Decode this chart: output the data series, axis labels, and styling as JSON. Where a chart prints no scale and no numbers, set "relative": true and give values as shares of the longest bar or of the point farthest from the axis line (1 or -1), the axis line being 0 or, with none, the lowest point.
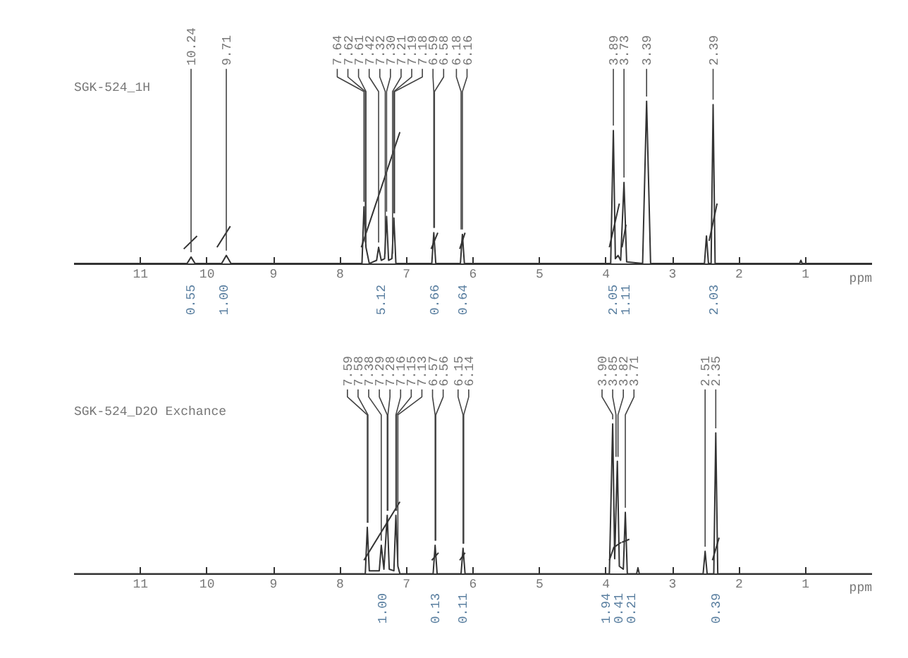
{
  "chart_data": [
    {
      "type": "line",
      "title": "SGK-524_1H",
      "xlabel": "ppm",
      "relative": true,
      "xlim": [
        12,
        0
      ],
      "xticks": [
        11,
        10,
        9,
        8,
        7,
        6,
        5,
        4,
        3,
        2,
        1
      ],
      "grid": false,
      "series": [
        {
          "color": "#333333",
          "x": [
            12.0,
            10.3,
            10.24,
            10.18,
            9.78,
            9.71,
            9.64,
            7.67,
            7.64,
            7.61,
            7.56,
            7.45,
            7.42,
            7.38,
            7.33,
            7.3,
            7.27,
            7.22,
            7.19,
            7.16,
            6.62,
            6.59,
            6.56,
            6.19,
            6.16,
            6.13,
            3.93,
            3.89,
            3.86,
            3.82,
            3.78,
            3.73,
            3.69,
            3.45,
            3.39,
            3.33,
            2.52,
            2.49,
            2.46,
            2.42,
            2.39,
            2.36,
            1.09,
            1.07,
            1.05,
            0
          ],
          "values": [
            0,
            0,
            0.04,
            0,
            0,
            0.05,
            0,
            0,
            0.35,
            0.1,
            0,
            0.02,
            0.1,
            0.02,
            0.03,
            0.29,
            0.02,
            0.03,
            0.28,
            0,
            0,
            0.19,
            0,
            0,
            0.18,
            0,
            0,
            0.82,
            0.03,
            0.05,
            0.02,
            0.5,
            0.01,
            0,
            1.0,
            0,
            0,
            0.17,
            0,
            0,
            0.98,
            0,
            0,
            0.02,
            0,
            0
          ]
        },
        {
          "color": "#333333",
          "x": [
            10.35,
            10.15,
            10.1,
            9.85,
            9.65,
            9.6,
            7.68,
            7.1,
            7.0,
            6.63,
            6.53,
            6.5,
            6.2,
            6.12,
            6.0,
            3.95,
            3.8,
            3.78,
            3.76,
            3.7,
            3.6,
            2.45,
            2.33
          ],
          "values": [
            0.09,
            0.17,
            null,
            0.1,
            0.23,
            null,
            0.1,
            0.81,
            null,
            0.09,
            0.19,
            null,
            0.09,
            0.19,
            null,
            0.1,
            0.37,
            null,
            0.1,
            0.24,
            null,
            0.14,
            0.37
          ]
        }
      ],
      "annotations": [
        {
          "text": "10.24",
          "x": 10.24,
          "y": 0.04
        },
        {
          "text": "9.71",
          "x": 9.71,
          "y": 0.05
        },
        {
          "text": "7.64",
          "x": 7.64,
          "y": 0.35
        },
        {
          "text": "7.62",
          "x": 7.62,
          "y": 0.1
        },
        {
          "text": "7.61",
          "x": 7.61,
          "y": 0.1
        },
        {
          "text": "7.42",
          "x": 7.42,
          "y": 0.1
        },
        {
          "text": "7.32",
          "x": 7.32,
          "y": 0.03
        },
        {
          "text": "7.30",
          "x": 7.3,
          "y": 0.29
        },
        {
          "text": "7.21",
          "x": 7.21,
          "y": 0.03
        },
        {
          "text": "7.19",
          "x": 7.19,
          "y": 0.28
        },
        {
          "text": "7.18",
          "x": 7.18,
          "y": 0.28
        },
        {
          "text": "6.59",
          "x": 6.59,
          "y": 0.19
        },
        {
          "text": "6.58",
          "x": 6.58,
          "y": 0.19
        },
        {
          "text": "6.18",
          "x": 6.18,
          "y": 0.18
        },
        {
          "text": "6.16",
          "x": 6.16,
          "y": 0.18
        },
        {
          "text": "3.89",
          "x": 3.89,
          "y": 0.82
        },
        {
          "text": "3.73",
          "x": 3.73,
          "y": 0.5
        },
        {
          "text": "3.39",
          "x": 3.39,
          "y": 1.0
        },
        {
          "text": "2.39",
          "x": 2.39,
          "y": 0.98
        },
        "0.55",
        "1.00",
        "5.12",
        "0.66",
        "0.64",
        "2.05",
        "1.11",
        "2.03"
      ]
    },
    {
      "type": "line",
      "title": "SGK-524_D2O Exchance",
      "xlabel": "ppm",
      "relative": true,
      "xlim": [
        12,
        0
      ],
      "xticks": [
        11,
        10,
        9,
        8,
        7,
        6,
        5,
        4,
        3,
        2,
        1
      ],
      "grid": false,
      "series": [
        {
          "color": "#333333",
          "x": [
            12.0,
            7.62,
            7.59,
            7.56,
            7.41,
            7.38,
            7.34,
            7.29,
            7.26,
            7.19,
            7.16,
            7.13,
            7.1,
            6.6,
            6.57,
            6.54,
            6.18,
            6.15,
            6.12,
            3.95,
            3.9,
            3.87,
            3.83,
            3.8,
            3.74,
            3.71,
            3.68,
            3.54,
            3.52,
            3.5,
            2.54,
            2.51,
            2.48,
            2.38,
            2.35,
            2.32,
            0
          ],
          "values": [
            0,
            0,
            0.31,
            0.02,
            0.02,
            0.19,
            0.03,
            0.39,
            0.03,
            0.02,
            0.39,
            0.05,
            0,
            0,
            0.19,
            0,
            0,
            0.17,
            0,
            0,
            1.0,
            0.1,
            0.75,
            0.05,
            0.03,
            0.41,
            0,
            0,
            0.04,
            0,
            0,
            0.15,
            0,
            0,
            0.94,
            0,
            0
          ]
        },
        {
          "color": "#333333",
          "x": [
            7.64,
            7.1,
            7.0,
            6.62,
            6.52,
            6.5,
            6.2,
            6.12,
            6.0,
            3.95,
            3.88,
            3.875,
            3.87,
            3.77,
            3.765,
            3.76,
            3.65,
            3.0,
            2.4,
            2.3
          ],
          "values": [
            0.09,
            0.48,
            null,
            0.09,
            0.14,
            null,
            0.09,
            0.14,
            null,
            0.09,
            0.18,
            null,
            0.18,
            0.21,
            null,
            0.21,
            0.23,
            null,
            0.09,
            0.24
          ]
        }
      ],
      "annotations": [
        {
          "text": "7.59",
          "x": 7.59,
          "y": 0.31
        },
        {
          "text": "7.58",
          "x": 7.58,
          "y": 0.31
        },
        {
          "text": "7.38",
          "x": 7.38,
          "y": 0.19
        },
        {
          "text": "7.29",
          "x": 7.29,
          "y": 0.39
        },
        {
          "text": "7.28",
          "x": 7.28,
          "y": 0.39
        },
        {
          "text": "7.16",
          "x": 7.16,
          "y": 0.39
        },
        {
          "text": "7.15",
          "x": 7.15,
          "y": 0.39
        },
        {
          "text": "7.13",
          "x": 7.13,
          "y": 0.05
        },
        {
          "text": "6.57",
          "x": 6.57,
          "y": 0.19
        },
        {
          "text": "6.56",
          "x": 6.56,
          "y": 0.19
        },
        {
          "text": "6.15",
          "x": 6.15,
          "y": 0.17
        },
        {
          "text": "6.14",
          "x": 6.14,
          "y": 0.17
        },
        {
          "text": "3.90",
          "x": 3.9,
          "y": 1.0
        },
        {
          "text": "3.85",
          "x": 3.85,
          "y": 0.75
        },
        {
          "text": "3.82",
          "x": 3.82,
          "y": 0.75
        },
        {
          "text": "3.71",
          "x": 3.71,
          "y": 0.41
        },
        {
          "text": "2.51",
          "x": 2.51,
          "y": 0.15
        },
        {
          "text": "2.35",
          "x": 2.35,
          "y": 0.94
        },
        "1.00",
        "0.13",
        "0.11",
        "1.94",
        "0.41",
        "0.21",
        "0.39"
      ]
    }
  ]
}
